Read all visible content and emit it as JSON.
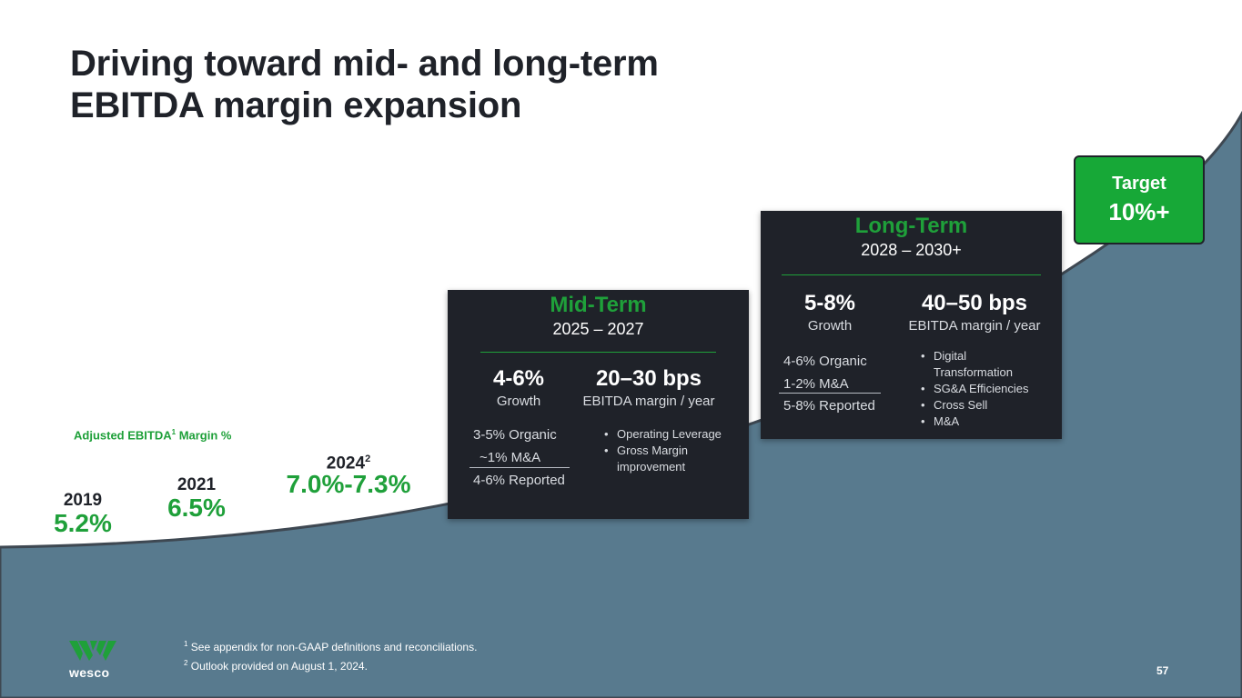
{
  "title": {
    "line1": "Driving toward mid- and long-term",
    "line2": "EBITDA margin expansion"
  },
  "chart_label": {
    "text": "Adjusted EBITDA",
    "sup": "1",
    "suffix": " Margin %"
  },
  "milestones": [
    {
      "year": "2019",
      "sup": "",
      "value": "5.2%"
    },
    {
      "year": "2021",
      "sup": "",
      "value": "6.5%"
    },
    {
      "year": "2024",
      "sup": "2",
      "value": "7.0%-7.3%"
    }
  ],
  "mid_term": {
    "title": "Mid-Term",
    "years": "2025 – 2027",
    "growth_value": "4-6%",
    "growth_label": "Growth",
    "margin_value": "20–30 bps",
    "margin_label": "EBITDA margin / year",
    "breakdown": [
      "3-5% Organic",
      "~1% M&A",
      "4-6% Reported"
    ],
    "bullets": [
      "Operating Leverage",
      "Gross Margin improvement"
    ]
  },
  "long_term": {
    "title": "Long-Term",
    "years": "2028 – 2030+",
    "growth_value": "5-8%",
    "growth_label": "Growth",
    "margin_value": "40–50 bps",
    "margin_label": "EBITDA margin / year",
    "breakdown": [
      "4-6% Organic",
      "1-2% M&A",
      "5-8% Reported"
    ],
    "bullets": [
      "Digital Transformation",
      "SG&A Efficiencies",
      "Cross Sell",
      "M&A"
    ]
  },
  "target": {
    "label": "Target",
    "value": "10%+"
  },
  "footnotes": [
    {
      "sup": "1",
      "text": " See appendix for non-GAAP definitions and reconciliations."
    },
    {
      "sup": "2",
      "text": " Outlook provided on August 1, 2024."
    }
  ],
  "page_number": "57",
  "logo": {
    "text": "wesco"
  },
  "colors": {
    "background": "#ffffff",
    "curve_fill": "#587a8e",
    "panel": "#1f2229",
    "accent_green": "#1fa03a",
    "target_green": "#17a837",
    "text_dark": "#1f2229"
  }
}
